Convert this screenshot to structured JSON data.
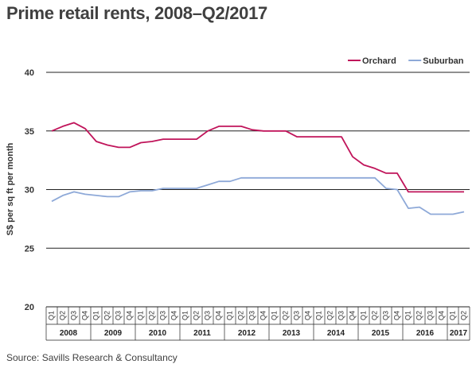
{
  "title": "Prime retail rents, 2008–Q2/2017",
  "source": "Source: Savills Research & Consultancy",
  "chart_data": {
    "type": "line",
    "ylabel": "S$ per sq ft per month",
    "xlabel": "",
    "ylim": [
      20,
      40
    ],
    "yticks": [
      20,
      25,
      30,
      35,
      40
    ],
    "grid": true,
    "legend_position": "top-right",
    "years": [
      "2008",
      "2009",
      "2010",
      "2011",
      "2012",
      "2013",
      "2014",
      "2015",
      "2016",
      "2017"
    ],
    "x": [
      "Q1",
      "Q2",
      "Q3",
      "Q4",
      "Q1",
      "Q2",
      "Q3",
      "Q4",
      "Q1",
      "Q2",
      "Q3",
      "Q4",
      "Q1",
      "Q2",
      "Q3",
      "Q4",
      "Q1",
      "Q2",
      "Q3",
      "Q4",
      "Q1",
      "Q2",
      "Q3",
      "Q4",
      "Q1",
      "Q2",
      "Q3",
      "Q4",
      "Q1",
      "Q2",
      "Q3",
      "Q4",
      "Q1",
      "Q2",
      "Q3",
      "Q4",
      "Q1",
      "Q2"
    ],
    "series": [
      {
        "name": "Orchard",
        "color": "#c0145a",
        "values": [
          35.0,
          35.4,
          35.7,
          35.2,
          34.1,
          33.8,
          33.6,
          33.6,
          34.0,
          34.1,
          34.3,
          34.3,
          34.3,
          34.3,
          35.0,
          35.4,
          35.4,
          35.4,
          35.1,
          35.0,
          35.0,
          35.0,
          34.5,
          34.5,
          34.5,
          34.5,
          34.5,
          32.8,
          32.1,
          31.8,
          31.4,
          31.4,
          29.8,
          29.8,
          29.8,
          29.8,
          29.8,
          29.8
        ]
      },
      {
        "name": "Suburban",
        "color": "#8ea9d8",
        "values": [
          29.0,
          29.5,
          29.8,
          29.6,
          29.5,
          29.4,
          29.4,
          29.8,
          29.9,
          29.9,
          30.1,
          30.1,
          30.1,
          30.1,
          30.4,
          30.7,
          30.7,
          31.0,
          31.0,
          31.0,
          31.0,
          31.0,
          31.0,
          31.0,
          31.0,
          31.0,
          31.0,
          31.0,
          31.0,
          31.0,
          30.1,
          30.0,
          28.4,
          28.5,
          27.9,
          27.9,
          27.9,
          28.1
        ]
      }
    ]
  }
}
